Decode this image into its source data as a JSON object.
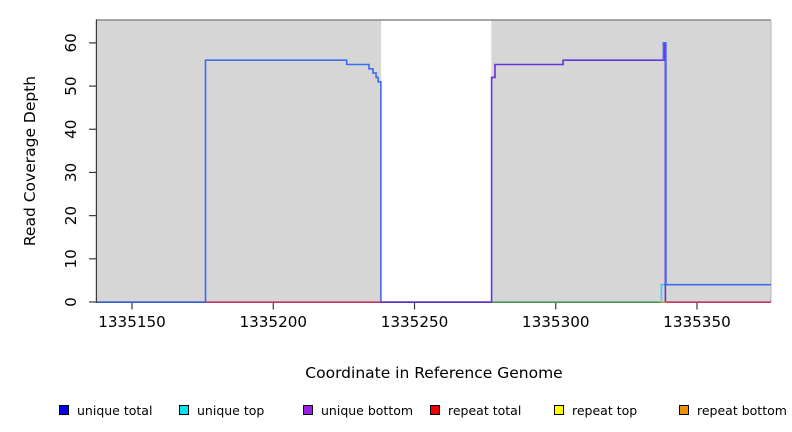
{
  "axes": {
    "xlabel": "Coordinate in Reference Genome",
    "ylabel": "Read Coverage Depth"
  },
  "legend": {
    "items": [
      {
        "label": "unique total",
        "color": "#0000EE"
      },
      {
        "label": "unique top",
        "color": "#00E5EE"
      },
      {
        "label": "unique bottom",
        "color": "#9A1FE8"
      },
      {
        "label": "repeat total",
        "color": "#EE0000"
      },
      {
        "label": "repeat top",
        "color": "#FFFF00"
      },
      {
        "label": "repeat bottom",
        "color": "#F29100"
      }
    ]
  },
  "chart_data": {
    "type": "line",
    "title": "",
    "xlabel": "Coordinate in Reference Genome",
    "ylabel": "Read Coverage Depth",
    "x_ticks": [
      1335150,
      1335200,
      1335250,
      1335300,
      1335350
    ],
    "y_ticks": [
      0,
      10,
      20,
      30,
      40,
      50,
      60
    ],
    "xlim": [
      1335137.6,
      1335376.2
    ],
    "ylim": [
      0,
      65.3
    ],
    "grid": "off",
    "legend_position": "bottom",
    "plot_bg": "#D6D6D6",
    "frame_top_color": "#8A8A8A",
    "frame_right_color": "#BDBDBD",
    "axis_color": "#3A3A3A",
    "no_data_gap": {
      "x0": 1335238.2,
      "x1": 1335277.2,
      "color": "#FFFFFF"
    },
    "series": [
      {
        "name": "repeat total",
        "color": "#DB3D72",
        "segments": [
          [
            [
              1335176,
              0
            ],
            [
              1335238,
              0
            ]
          ],
          [
            [
              1335339,
              0
            ],
            [
              1335376.2,
              0
            ]
          ]
        ]
      },
      {
        "name": "top overlap (unique top over repeat top)",
        "color": "#53AE63",
        "segments": [
          [
            [
              1335277.2,
              0
            ],
            [
              1335337.4,
              0
            ]
          ]
        ]
      },
      {
        "name": "repeat bottom",
        "color": "#F2A33B",
        "segments": [
          [
            [
              1335337.2,
              0
            ],
            [
              1335339.2,
              0
            ]
          ]
        ]
      },
      {
        "name": "unique bottom",
        "color": "#6633E0",
        "segments": [
          [
            [
              1335238.2,
              0
            ],
            [
              1335277.1,
              0
            ]
          ],
          [
            [
              1335277.3,
              0
            ],
            [
              1335277.3,
              52
            ],
            [
              1335278.5,
              52
            ],
            [
              1335278.5,
              55
            ],
            [
              1335302.6,
              55
            ],
            [
              1335302.6,
              56
            ],
            [
              1335338.5,
              56
            ],
            [
              1335338.5,
              60
            ],
            [
              1335338.8,
              60
            ],
            [
              1335338.8,
              0
            ]
          ]
        ]
      },
      {
        "name": "unique top",
        "color": "#35D3E8",
        "segments": [
          [
            [
              1335337.4,
              0.3
            ],
            [
              1335337.4,
              4
            ],
            [
              1335338.4,
              4
            ]
          ]
        ]
      },
      {
        "name": "unique total",
        "color": "#3D6BEF",
        "segments": [
          [
            [
              1335137.6,
              0
            ],
            [
              1335176,
              0
            ]
          ],
          [
            [
              1335176,
              0
            ],
            [
              1335176,
              56
            ],
            [
              1335226,
              56
            ],
            [
              1335226,
              55
            ],
            [
              1335233.9,
              55
            ],
            [
              1335233.9,
              54
            ],
            [
              1335235.3,
              54
            ],
            [
              1335235.3,
              53
            ],
            [
              1335236.4,
              53
            ],
            [
              1335236.4,
              52
            ],
            [
              1335237.1,
              52
            ],
            [
              1335237.1,
              51
            ],
            [
              1335238.1,
              51
            ],
            [
              1335238.1,
              0
            ]
          ],
          [
            [
              1335338.1,
              56
            ],
            [
              1335338.1,
              60
            ],
            [
              1335339,
              60
            ],
            [
              1335339,
              4
            ]
          ],
          [
            [
              1335338.3,
              4
            ],
            [
              1335376.2,
              4
            ]
          ]
        ]
      }
    ]
  }
}
